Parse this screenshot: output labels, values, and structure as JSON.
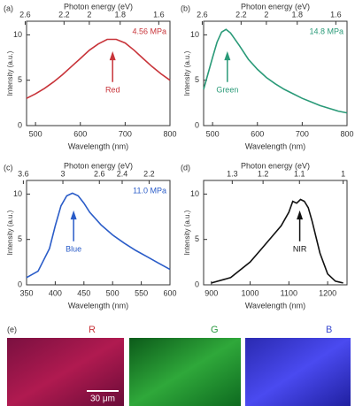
{
  "chart_data": [
    {
      "type": "line",
      "panel": "(a)",
      "top_axis_title": "Photon energy (eV)",
      "x_label": "Wavelength (nm)",
      "y_label": "Intensity (a.u.)",
      "annotation": "4.56 MPa",
      "arrow_label": "Red",
      "color": "#c8343a",
      "xlim": [
        480,
        800
      ],
      "xticks": [
        500,
        600,
        700,
        800
      ],
      "ylim": [
        0,
        11.5
      ],
      "yticks": [
        0,
        5,
        10
      ],
      "top_ticks": [
        2.6,
        2.2,
        2.0,
        1.8,
        1.6
      ],
      "x": [
        480,
        500,
        520,
        540,
        560,
        580,
        600,
        620,
        640,
        660,
        680,
        700,
        720,
        740,
        760,
        780,
        800
      ],
      "values": [
        3.0,
        3.5,
        4.1,
        4.8,
        5.6,
        6.5,
        7.4,
        8.3,
        9.0,
        9.5,
        9.5,
        9.1,
        8.3,
        7.4,
        6.5,
        5.7,
        5.0
      ]
    },
    {
      "type": "line",
      "panel": "(b)",
      "top_axis_title": "Photon energy (eV)",
      "x_label": "Wavelength (nm)",
      "y_label": "Intensity (a.u.)",
      "annotation": "14.8 MPa",
      "arrow_label": "Green",
      "color": "#2a9a78",
      "xlim": [
        480,
        800
      ],
      "xticks": [
        500,
        600,
        700,
        800
      ],
      "ylim": [
        0,
        11.5
      ],
      "yticks": [
        0,
        5,
        10
      ],
      "top_ticks": [
        2.6,
        2.2,
        2.0,
        1.8,
        1.6
      ],
      "x": [
        480,
        500,
        510,
        520,
        530,
        540,
        560,
        580,
        600,
        620,
        640,
        660,
        680,
        700,
        720,
        740,
        760,
        780,
        800
      ],
      "values": [
        4.0,
        7.5,
        9.2,
        10.3,
        10.6,
        10.2,
        8.8,
        7.3,
        6.2,
        5.3,
        4.6,
        4.0,
        3.5,
        3.0,
        2.6,
        2.2,
        1.9,
        1.6,
        1.4
      ]
    },
    {
      "type": "line",
      "panel": "(c)",
      "top_axis_title": "Photon energy (eV)",
      "x_label": "Wavelength (nm)",
      "y_label": "Intensity (a.u.)",
      "annotation": "11.0 MPa",
      "arrow_label": "Blue",
      "color": "#2a5cc8",
      "xlim": [
        350,
        600
      ],
      "xticks": [
        350,
        400,
        450,
        500,
        550,
        600
      ],
      "ylim": [
        0,
        11.5
      ],
      "yticks": [
        0,
        5,
        10
      ],
      "top_ticks": [
        3.6,
        3.0,
        2.6,
        2.4,
        2.2
      ],
      "x": [
        350,
        370,
        390,
        400,
        410,
        420,
        430,
        440,
        450,
        460,
        480,
        500,
        520,
        540,
        560,
        580,
        600
      ],
      "values": [
        0.8,
        1.5,
        4.0,
        6.5,
        8.7,
        9.8,
        10.1,
        9.8,
        9.0,
        8.0,
        6.6,
        5.5,
        4.6,
        3.8,
        3.1,
        2.4,
        1.7
      ]
    },
    {
      "type": "line",
      "panel": "(d)",
      "top_axis_title": "Photon energy (eV)",
      "x_label": "Wavelength (nm)",
      "y_label": "Intensity (a.u.)",
      "arrow_label": "NIR",
      "color": "#111111",
      "xlim": [
        880,
        1250
      ],
      "xticks": [
        900,
        1000,
        1100,
        1200
      ],
      "ylim": [
        0,
        11.5
      ],
      "yticks": [
        0,
        5,
        10
      ],
      "top_ticks": [
        1.3,
        1.2,
        1.1,
        1
      ],
      "x": [
        900,
        950,
        1000,
        1030,
        1060,
        1080,
        1100,
        1110,
        1120,
        1130,
        1140,
        1150,
        1160,
        1180,
        1200,
        1220,
        1240
      ],
      "values": [
        0.2,
        0.8,
        2.5,
        4.0,
        5.5,
        6.5,
        8.0,
        9.2,
        9.0,
        9.4,
        9.2,
        8.5,
        7.0,
        3.5,
        1.2,
        0.4,
        0.2
      ]
    }
  ],
  "images": {
    "panel": "(e)",
    "channels": [
      "R",
      "G",
      "B"
    ],
    "scale_bar": "30 μm"
  }
}
